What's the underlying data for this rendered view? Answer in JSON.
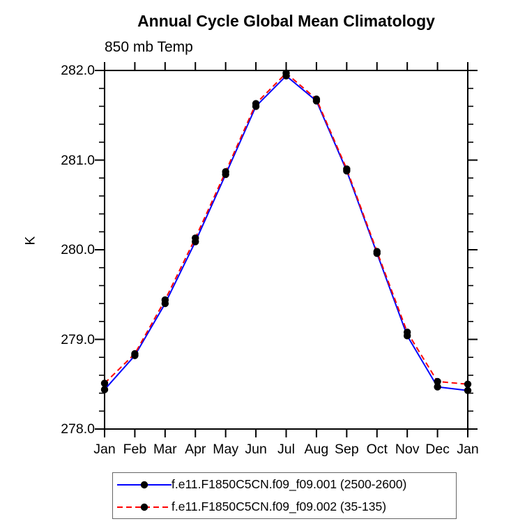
{
  "chart_data": {
    "type": "line",
    "title": "Annual Cycle Global Mean Climatology",
    "subtitle": "850 mb Temp",
    "ylabel": "K",
    "xlabel": "",
    "grid": false,
    "legend_position": "bottom",
    "background_color": "#ffffff",
    "frame_color": "#000000",
    "categories": [
      "Jan",
      "Feb",
      "Mar",
      "Apr",
      "May",
      "Jun",
      "Jul",
      "Aug",
      "Sep",
      "Oct",
      "Nov",
      "Dec",
      "Jan"
    ],
    "y_axis": {
      "min": 278.0,
      "max": 282.0,
      "major_step": 1.0,
      "minor_step": 0.2,
      "major_tick_labels": [
        "278.0",
        "279.0",
        "280.0",
        "281.0",
        "282.0"
      ]
    },
    "series": [
      {
        "name": "f.e11.F1850C5CN.f09_f09.001 (2500-2600)",
        "color": "#0000ff",
        "line_style": "solid",
        "marker": "filled-circle",
        "marker_color": "#000000",
        "values": [
          278.44,
          278.82,
          279.4,
          280.09,
          280.84,
          281.6,
          281.94,
          281.66,
          280.88,
          279.96,
          279.04,
          278.47,
          278.43
        ]
      },
      {
        "name": "f.e11.F1850C5CN.f09_f09.002 (35-135)",
        "color": "#ff0000",
        "line_style": "dashed",
        "marker": "filled-circle",
        "marker_color": "#000000",
        "values": [
          278.51,
          278.84,
          279.44,
          280.13,
          280.87,
          281.63,
          281.97,
          281.68,
          280.9,
          279.98,
          279.08,
          278.53,
          278.5
        ]
      }
    ]
  }
}
